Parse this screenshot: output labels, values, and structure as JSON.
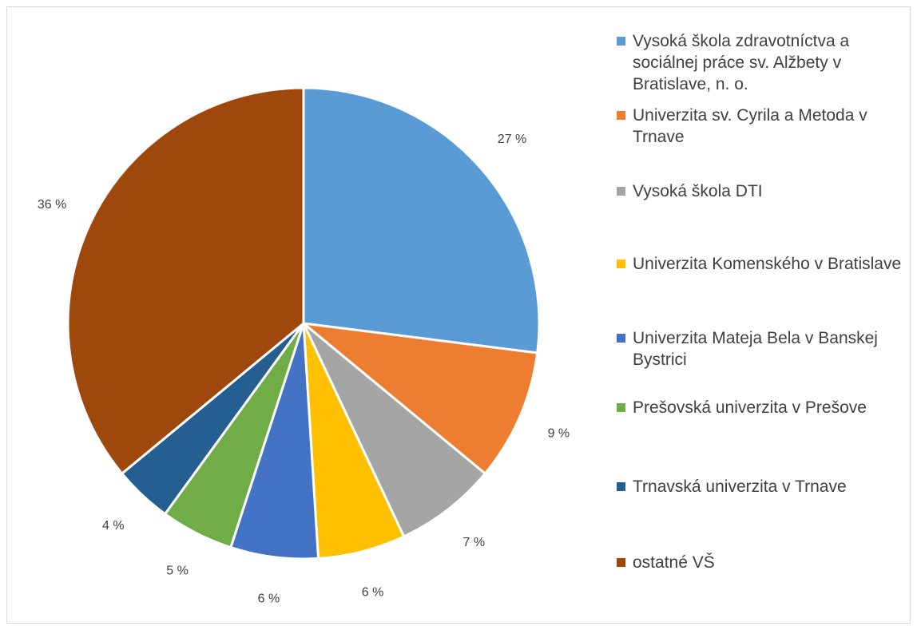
{
  "chart_data": {
    "type": "pie",
    "categories": [
      "Vysoká škola zdravotníctva a sociálnej práce sv. Alžbety v Bratislave, n. o.",
      "Univerzita sv. Cyrila a Metoda v Trnave",
      "Vysoká škola DTI",
      "Univerzita Komenského v Bratislave",
      "Univerzita Mateja Bela v Banskej Bystrici",
      "Prešovská univerzita v Prešove",
      "Trnavská univerzita v Trnave",
      "ostatné VŠ"
    ],
    "values": [
      27,
      9,
      7,
      6,
      6,
      5,
      4,
      36
    ],
    "value_labels": [
      "27 %",
      "9 %",
      "7 %",
      "6 %",
      "6 %",
      "5 %",
      "4 %",
      "36 %"
    ],
    "colors": [
      "#5b9bd5",
      "#ed7d31",
      "#a5a5a5",
      "#ffc000",
      "#4472c4",
      "#70ad47",
      "#255e91",
      "#9e480e"
    ],
    "legend": "right"
  }
}
